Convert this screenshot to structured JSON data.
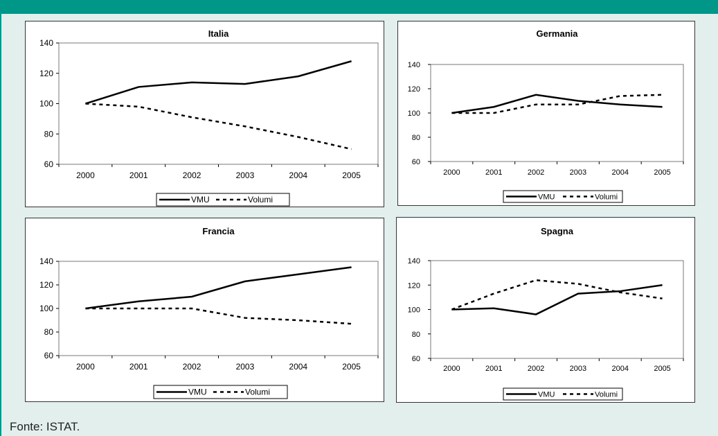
{
  "source": "Fonte: ISTAT.",
  "chart_data": [
    {
      "type": "line",
      "title": "Italia",
      "categories": [
        "2000",
        "2001",
        "2002",
        "2003",
        "2004",
        "2005"
      ],
      "ylim": [
        60,
        140
      ],
      "yticks": [
        60,
        80,
        100,
        120,
        140
      ],
      "legend": "bottom",
      "series": [
        {
          "name": "VMU",
          "values": [
            100,
            111,
            114,
            113,
            118,
            128
          ]
        },
        {
          "name": "Volumi",
          "values": [
            100,
            98,
            91,
            85,
            78,
            70
          ]
        }
      ]
    },
    {
      "type": "line",
      "title": "Germania",
      "categories": [
        "2000",
        "2001",
        "2002",
        "2003",
        "2004",
        "2005"
      ],
      "ylim": [
        60,
        140
      ],
      "yticks": [
        60,
        80,
        100,
        120,
        140
      ],
      "legend": "bottom",
      "series": [
        {
          "name": "VMU",
          "values": [
            100,
            105,
            115,
            110,
            107,
            105
          ]
        },
        {
          "name": "Volumi",
          "values": [
            100,
            100,
            107,
            107,
            114,
            115
          ]
        }
      ]
    },
    {
      "type": "line",
      "title": "Francia",
      "categories": [
        "2000",
        "2001",
        "2002",
        "2003",
        "2004",
        "2005"
      ],
      "ylim": [
        60,
        140
      ],
      "yticks": [
        60,
        80,
        100,
        120,
        140
      ],
      "legend": "bottom",
      "series": [
        {
          "name": "VMU",
          "values": [
            100,
            106,
            110,
            123,
            129,
            135
          ]
        },
        {
          "name": "Volumi",
          "values": [
            100,
            100,
            100,
            92,
            90,
            87
          ]
        }
      ]
    },
    {
      "type": "line",
      "title": "Spagna",
      "categories": [
        "2000",
        "2001",
        "2002",
        "2003",
        "2004",
        "2005"
      ],
      "ylim": [
        60,
        140
      ],
      "yticks": [
        60,
        80,
        100,
        120,
        140
      ],
      "legend": "bottom",
      "series": [
        {
          "name": "VMU",
          "values": [
            100,
            101,
            96,
            113,
            115,
            120
          ]
        },
        {
          "name": "Volumi",
          "values": [
            100,
            113,
            124,
            121,
            114,
            109
          ]
        }
      ]
    }
  ]
}
